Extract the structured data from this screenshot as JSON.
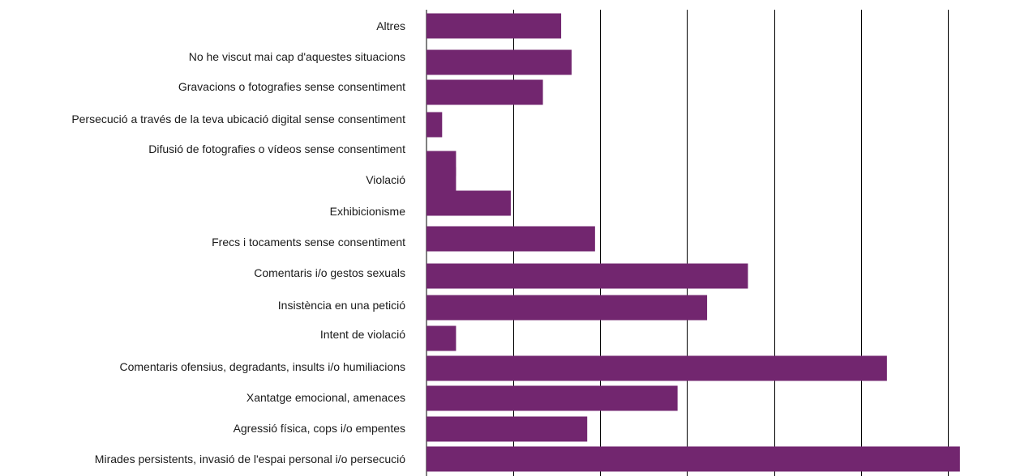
{
  "chart_data": {
    "type": "bar",
    "orientation": "horizontal",
    "categories": [
      "Altres",
      "No he viscut mai cap d'aquestes situacions",
      "Gravacions o fotografies sense consentiment",
      "Persecució a través de la teva ubicació digital sense consentiment",
      "Difusió de fotografies o vídeos sense consentiment",
      "Violació",
      "Exhibicionisme",
      "Frecs i tocaments sense consentiment",
      "Comentaris i/o gestos sexuals",
      "Insistència en una petició",
      "Intent de violació",
      "Comentaris ofensius, degradants, insults i/o humiliacions",
      "Xantatge emocional, amenaces",
      "Agressió física, cops i/o empentes",
      "Mirades persistents, invasió de l'espai personal i/o persecució"
    ],
    "values": [
      15.5,
      16.7,
      13.4,
      1.8,
      3.4,
      3.4,
      9.7,
      19.4,
      37.0,
      32.3,
      3.4,
      53.0,
      28.9,
      18.5,
      61.4
    ],
    "xlim": [
      0,
      70
    ],
    "gridlines": [
      10,
      20,
      30,
      40,
      50,
      60
    ],
    "grid": true,
    "legend": "none",
    "bar_color": "#72266f",
    "grid_color": "#000000",
    "label_color": "#1a1a1a"
  }
}
